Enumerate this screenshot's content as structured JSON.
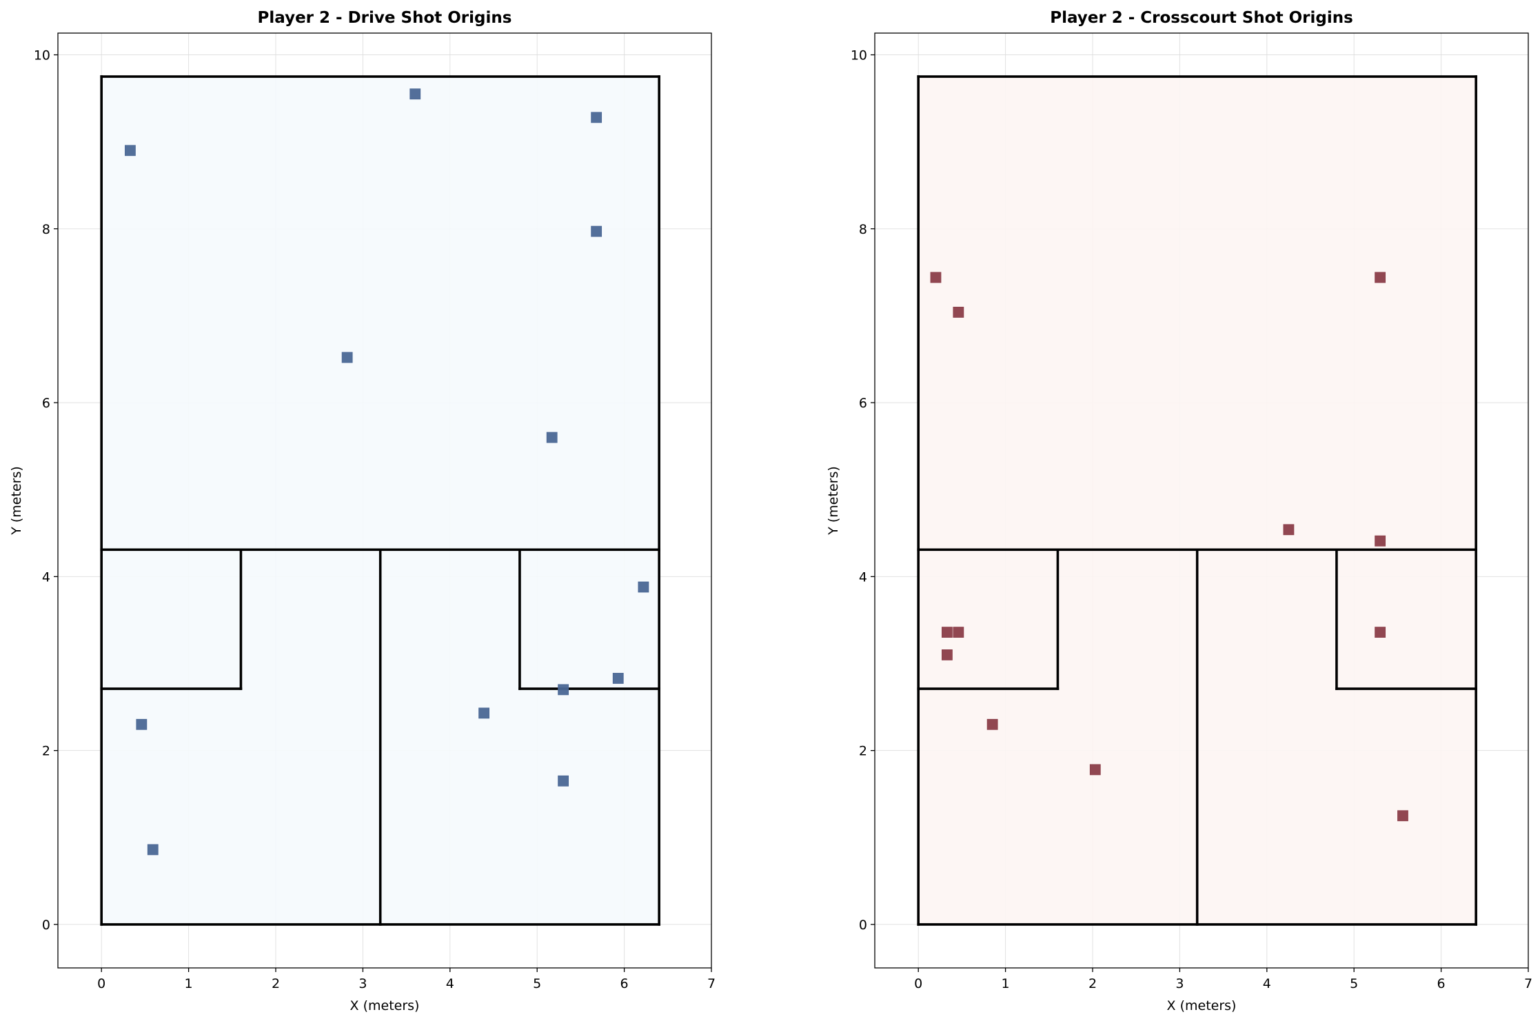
{
  "figure": {
    "background": "#ffffff",
    "grid_color": "#d9d9d9",
    "court_line_color": "#000000"
  },
  "chart_data": [
    {
      "type": "scatter",
      "title": "Player 2 - Drive Shot Origins",
      "xlabel": "X (meters)",
      "ylabel": "Y (meters)",
      "xlim": [
        -0.5,
        7
      ],
      "ylim": [
        -0.5,
        10.25
      ],
      "xticks": [
        0,
        1,
        2,
        3,
        4,
        5,
        6,
        7
      ],
      "yticks": [
        0,
        2,
        4,
        6,
        8,
        10
      ],
      "grid": true,
      "court_fill": "#f5f9fd",
      "marker_color": "#4a6795",
      "marker": "square",
      "points": [
        {
          "x": 0.33,
          "y": 8.9
        },
        {
          "x": 3.6,
          "y": 9.55
        },
        {
          "x": 5.68,
          "y": 9.28
        },
        {
          "x": 5.68,
          "y": 7.97
        },
        {
          "x": 2.82,
          "y": 6.52
        },
        {
          "x": 5.17,
          "y": 5.6
        },
        {
          "x": 6.22,
          "y": 3.88
        },
        {
          "x": 5.93,
          "y": 2.83
        },
        {
          "x": 5.3,
          "y": 2.7
        },
        {
          "x": 4.39,
          "y": 2.43
        },
        {
          "x": 0.46,
          "y": 2.3
        },
        {
          "x": 5.3,
          "y": 1.65
        },
        {
          "x": 0.59,
          "y": 0.86
        }
      ]
    },
    {
      "type": "scatter",
      "title": "Player 2 - Crosscourt Shot Origins",
      "xlabel": "X (meters)",
      "ylabel": "Y (meters)",
      "xlim": [
        -0.5,
        7
      ],
      "ylim": [
        -0.5,
        10.25
      ],
      "xticks": [
        0,
        1,
        2,
        3,
        4,
        5,
        6,
        7
      ],
      "yticks": [
        0,
        2,
        4,
        6,
        8,
        10
      ],
      "grid": true,
      "court_fill": "#fdf5f3",
      "marker_color": "#8b3d48",
      "marker": "square",
      "points": [
        {
          "x": 0.2,
          "y": 7.44
        },
        {
          "x": 0.46,
          "y": 7.04
        },
        {
          "x": 5.3,
          "y": 7.44
        },
        {
          "x": 4.25,
          "y": 4.54
        },
        {
          "x": 5.3,
          "y": 4.41
        },
        {
          "x": 0.33,
          "y": 3.36
        },
        {
          "x": 0.46,
          "y": 3.36
        },
        {
          "x": 5.3,
          "y": 3.36
        },
        {
          "x": 0.33,
          "y": 3.1
        },
        {
          "x": 0.85,
          "y": 2.3
        },
        {
          "x": 2.03,
          "y": 1.78
        },
        {
          "x": 5.56,
          "y": 1.25
        }
      ]
    }
  ]
}
